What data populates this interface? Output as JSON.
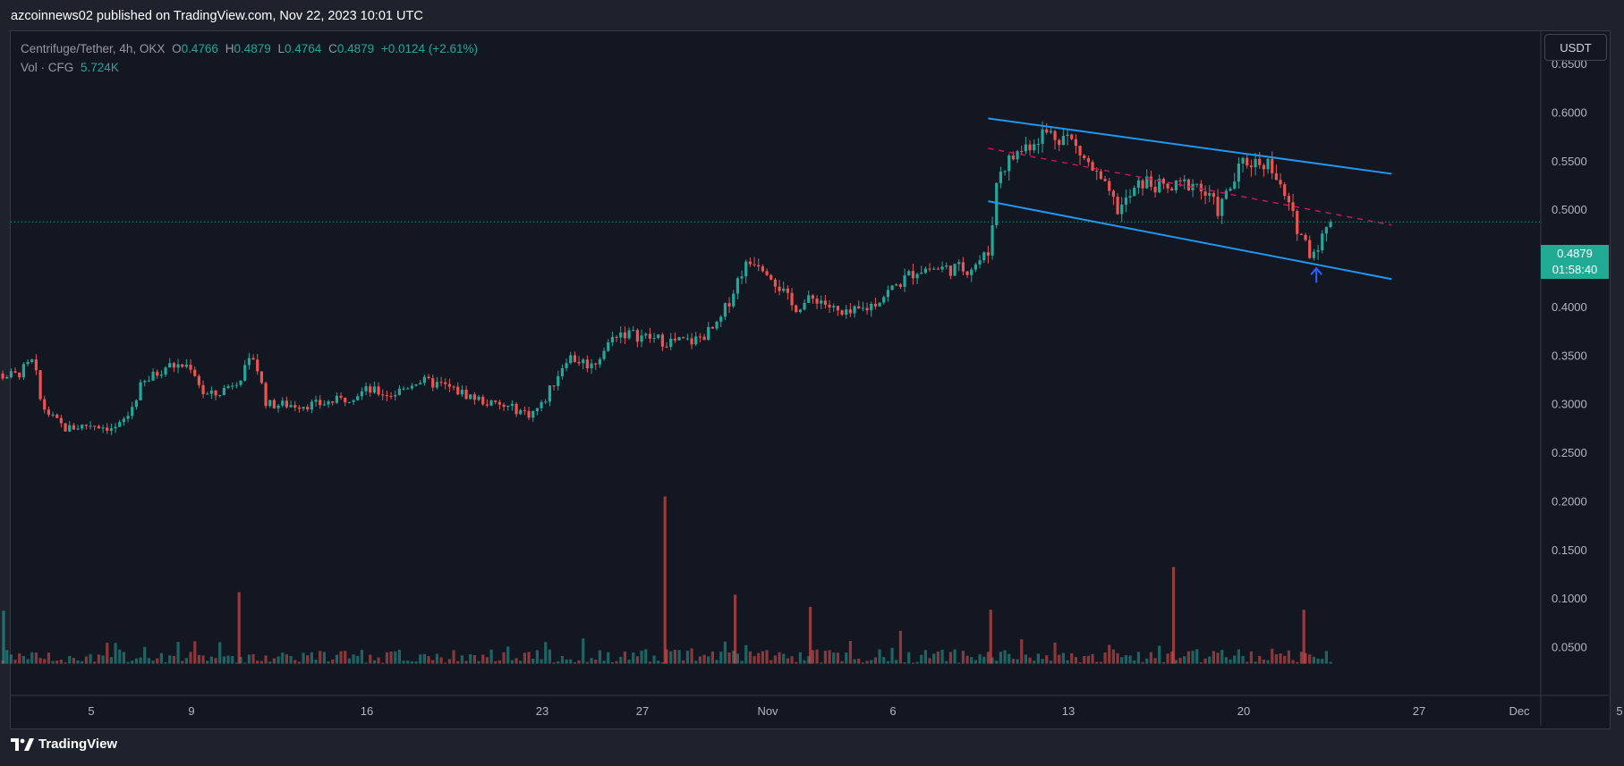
{
  "header": {
    "published": "azcoinnews02 published on TradingView.com, Nov 22, 2023 10:01 UTC"
  },
  "legend": {
    "symbol": "Centrifuge/Tether, 4h, OKX",
    "o_label": "O",
    "o_value": "0.4766",
    "h_label": "H",
    "h_value": "0.4879",
    "l_label": "L",
    "l_value": "0.4764",
    "c_label": "C",
    "c_value": "0.4879",
    "change": "+0.0124 (+2.61%)",
    "volume_label": "Vol · CFG",
    "volume_value": "5.724K"
  },
  "price_scale": {
    "unit": "USDT",
    "last_price": "0.4879",
    "countdown": "01:58:40"
  },
  "footer": {
    "brand": "TradingView"
  },
  "colors": {
    "up": "#26a69a",
    "down": "#ef5350",
    "channel": "#2196f3",
    "midline": "#c2185b",
    "background": "#131722"
  },
  "icons": {
    "arrow": "arrow-up-icon",
    "logo": "tradingview-logo-icon"
  },
  "chart_data": {
    "type": "candlestick",
    "symbol": "CFG/USDT",
    "timeframe": "4h",
    "y_ticks": [
      "0.6500",
      "0.6000",
      "0.5500",
      "0.5000",
      "0.4500",
      "0.4000",
      "0.3500",
      "0.3000",
      "0.2500",
      "0.2000",
      "0.1500",
      "0.1000",
      "0.0500"
    ],
    "ylim": [
      0.03,
      0.67
    ],
    "x_ticks": [
      {
        "label": "5",
        "day": 5
      },
      {
        "label": "9",
        "day": 9
      },
      {
        "label": "16",
        "day": 16
      },
      {
        "label": "23",
        "day": 23
      },
      {
        "label": "27",
        "day": 27
      },
      {
        "label": "Nov",
        "day": 32
      },
      {
        "label": "6",
        "day": 37
      },
      {
        "label": "13",
        "day": 44
      },
      {
        "label": "20",
        "day": 51
      },
      {
        "label": "27",
        "day": 58
      },
      {
        "label": "Dec",
        "day": 62
      },
      {
        "label": "5",
        "day": 66
      }
    ],
    "xlim_day": [
      0.3,
      69.3
    ],
    "last_price": 0.4879,
    "price_path": [
      [
        0.3,
        0.31
      ],
      [
        1,
        0.33
      ],
      [
        2,
        0.33
      ],
      [
        2.7,
        0.345
      ],
      [
        3,
        0.3
      ],
      [
        3.5,
        0.285
      ],
      [
        4,
        0.275
      ],
      [
        5,
        0.28
      ],
      [
        6,
        0.275
      ],
      [
        6.5,
        0.29
      ],
      [
        7,
        0.32
      ],
      [
        8,
        0.34
      ],
      [
        9,
        0.34
      ],
      [
        9.5,
        0.31
      ],
      [
        10,
        0.31
      ],
      [
        11,
        0.33
      ],
      [
        11.5,
        0.35
      ],
      [
        12,
        0.3
      ],
      [
        14,
        0.3
      ],
      [
        15,
        0.305
      ],
      [
        16,
        0.315
      ],
      [
        17,
        0.31
      ],
      [
        18,
        0.325
      ],
      [
        19,
        0.32
      ],
      [
        20,
        0.31
      ],
      [
        21,
        0.3
      ],
      [
        22,
        0.295
      ],
      [
        22.5,
        0.29
      ],
      [
        23,
        0.3
      ],
      [
        24,
        0.35
      ],
      [
        25,
        0.34
      ],
      [
        26,
        0.375
      ],
      [
        27,
        0.37
      ],
      [
        28,
        0.365
      ],
      [
        29,
        0.365
      ],
      [
        30,
        0.38
      ],
      [
        31,
        0.44
      ],
      [
        31.5,
        0.45
      ],
      [
        32,
        0.44
      ],
      [
        33,
        0.4
      ],
      [
        34,
        0.41
      ],
      [
        35,
        0.39
      ],
      [
        36,
        0.4
      ],
      [
        37,
        0.42
      ],
      [
        38,
        0.44
      ],
      [
        39,
        0.44
      ],
      [
        40,
        0.44
      ],
      [
        40.8,
        0.455
      ],
      [
        41.2,
        0.54
      ],
      [
        42,
        0.56
      ],
      [
        43,
        0.58
      ],
      [
        44,
        0.575
      ],
      [
        45,
        0.54
      ],
      [
        46,
        0.5
      ],
      [
        47,
        0.53
      ],
      [
        48,
        0.52
      ],
      [
        49,
        0.53
      ],
      [
        50,
        0.5
      ],
      [
        51,
        0.55
      ],
      [
        52,
        0.55
      ],
      [
        53,
        0.49
      ],
      [
        53.7,
        0.455
      ],
      [
        54.2,
        0.475
      ],
      [
        54.5,
        0.4879
      ]
    ],
    "volume_spikes": [
      {
        "day": 27.9,
        "value": 0.2055,
        "dir": "down"
      },
      {
        "day": 48.2,
        "value": 0.133,
        "dir": "down"
      },
      {
        "day": 10.9,
        "value": 0.107,
        "dir": "down"
      },
      {
        "day": 30.7,
        "value": 0.1045,
        "dir": "down"
      },
      {
        "day": 33.7,
        "value": 0.092,
        "dir": "down"
      },
      {
        "day": 40.9,
        "value": 0.089,
        "dir": "down"
      },
      {
        "day": 53.4,
        "value": 0.089,
        "dir": "down"
      },
      {
        "day": 1.5,
        "value": 0.088,
        "dir": "up"
      }
    ],
    "drawings": {
      "channel_upper": [
        [
          40.8,
          0.5945
        ],
        [
          56.9,
          0.5375
        ]
      ],
      "channel_lower": [
        [
          40.8,
          0.5093
        ],
        [
          56.9,
          0.4292
        ]
      ],
      "channel_mid": [
        [
          40.8,
          0.5638
        ],
        [
          56.9,
          0.4848
        ]
      ],
      "arrow_marker": {
        "day": 53.9,
        "value": 0.432
      }
    }
  }
}
